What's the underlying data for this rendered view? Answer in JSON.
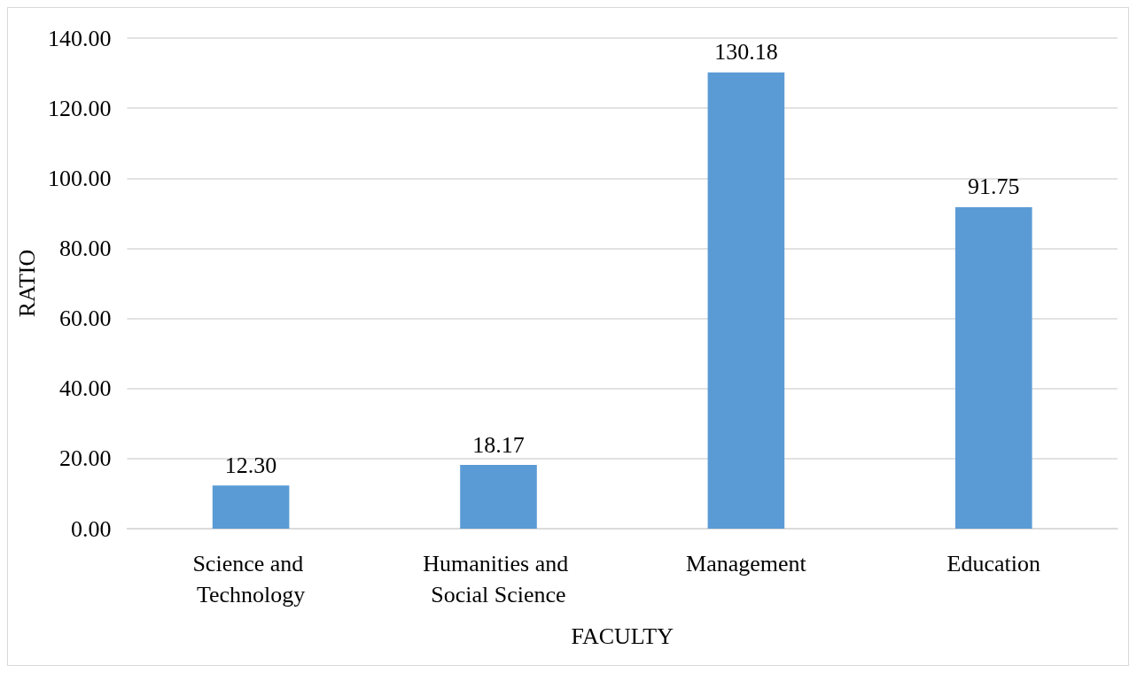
{
  "chart_data": {
    "type": "bar",
    "xlabel": "FACULTY",
    "ylabel": "RATIO",
    "categories": [
      "Science and Technology",
      "Humanities and Social Science",
      "Management",
      "Education"
    ],
    "values": [
      12.3,
      18.17,
      130.18,
      91.75
    ],
    "color": "#5b9bd5",
    "value_labels": [
      "12.30",
      "18.17",
      "130.18",
      "91.75"
    ],
    "ylim": [
      0,
      140
    ],
    "yticks": [
      {
        "value": 0,
        "label": "0.00"
      },
      {
        "value": 20,
        "label": "20.00"
      },
      {
        "value": 40,
        "label": "40.00"
      },
      {
        "value": 60,
        "label": "60.00"
      },
      {
        "value": 80,
        "label": "80.00"
      },
      {
        "value": 100,
        "label": "100.00"
      },
      {
        "value": 120,
        "label": "120.00"
      },
      {
        "value": 140,
        "label": "140.00"
      }
    ],
    "grid": "y",
    "legend": false
  }
}
